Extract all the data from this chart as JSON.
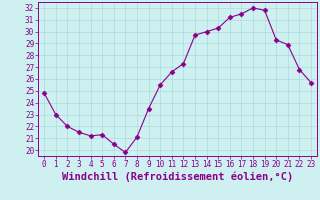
{
  "x": [
    0,
    1,
    2,
    3,
    4,
    5,
    6,
    7,
    8,
    9,
    10,
    11,
    12,
    13,
    14,
    15,
    16,
    17,
    18,
    19,
    20,
    21,
    22,
    23
  ],
  "y": [
    24.8,
    23.0,
    22.0,
    21.5,
    21.2,
    21.3,
    20.5,
    19.8,
    21.1,
    23.5,
    25.5,
    26.6,
    27.3,
    29.7,
    30.0,
    30.3,
    31.2,
    31.5,
    32.0,
    31.8,
    29.3,
    28.9,
    26.8,
    25.7
  ],
  "line_color": "#8b008b",
  "marker": "D",
  "marker_size": 2.5,
  "bg_color": "#cef0f0",
  "grid_color": "#aadddd",
  "xlabel": "Windchill (Refroidissement éolien,°C)",
  "xlim": [
    -0.5,
    23.5
  ],
  "ylim": [
    19.5,
    32.5
  ],
  "yticks": [
    20,
    21,
    22,
    23,
    24,
    25,
    26,
    27,
    28,
    29,
    30,
    31,
    32
  ],
  "xticks": [
    0,
    1,
    2,
    3,
    4,
    5,
    6,
    7,
    8,
    9,
    10,
    11,
    12,
    13,
    14,
    15,
    16,
    17,
    18,
    19,
    20,
    21,
    22,
    23
  ],
  "tick_label_size": 5.5,
  "xlabel_size": 7.5,
  "xlabel_color": "#8b008b",
  "axis_color": "#8b008b"
}
